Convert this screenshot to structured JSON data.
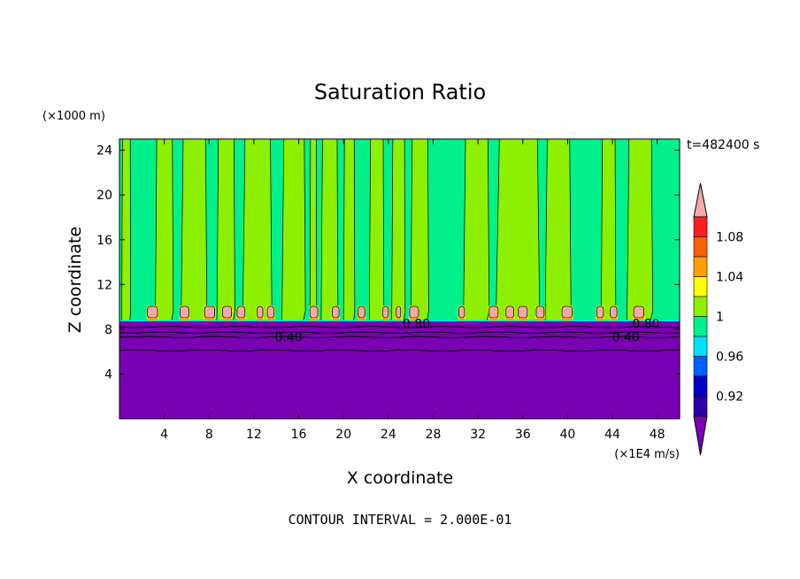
{
  "chart_data": {
    "type": "heatmap",
    "title": "Saturation Ratio",
    "xlabel": "X coordinate",
    "ylabel": "Z coordinate",
    "x_unit": "(×1E4 m/s)",
    "y_unit": "(×1000 m)",
    "time_label": "t=482400 s",
    "footer": "CONTOUR INTERVAL = 2.000E-01",
    "xlim": [
      0,
      50
    ],
    "ylim": [
      0,
      25
    ],
    "x_ticks": [
      4,
      8,
      12,
      16,
      20,
      24,
      28,
      32,
      36,
      40,
      44,
      48
    ],
    "y_ticks": [
      4,
      8,
      12,
      16,
      20,
      24
    ],
    "colorbar": {
      "levels": [
        0.92,
        0.96,
        1,
        1.04,
        1.08
      ],
      "colors": [
        "#7a00b4",
        "#2a00a8",
        "#0000c8",
        "#0060ff",
        "#00e0ff",
        "#00f08c",
        "#8cf000",
        "#ffff00",
        "#ffa000",
        "#ff6000",
        "#ff1e1e",
        "#f5a8a8"
      ]
    },
    "contour_labels": [
      {
        "text": "0.40",
        "x": 15.1,
        "z": 7.3
      },
      {
        "text": "0.80",
        "x": 26.5,
        "z": 8.5
      },
      {
        "text": "0.80",
        "x": 47.0,
        "z": 8.5
      },
      {
        "text": "0.40",
        "x": 45.2,
        "z": 7.3
      }
    ],
    "fields": {
      "lower_layer_top_z": 8.7,
      "lower_layer_value": "< 0.92",
      "green_columns_x": [
        [
          0.2,
          1.0
        ],
        [
          3.2,
          4.8
        ],
        [
          5.5,
          7.8
        ],
        [
          8.7,
          10.3
        ],
        [
          11.0,
          13.6
        ],
        [
          14.5,
          16.6
        ],
        [
          17.0,
          17.6
        ],
        [
          18.0,
          19.5
        ],
        [
          20.0,
          21.0
        ],
        [
          22.3,
          23.6
        ],
        [
          24.3,
          25.5
        ],
        [
          26.0,
          27.6
        ],
        [
          30.7,
          33.0
        ],
        [
          33.6,
          37.5
        ],
        [
          38.0,
          40.3
        ],
        [
          43.0,
          44.3
        ],
        [
          45.3,
          47.6
        ]
      ],
      "supersaturated_cells_x": [
        [
          2.5,
          3.4
        ],
        [
          5.4,
          6.2
        ],
        [
          7.6,
          8.5
        ],
        [
          9.2,
          10.0
        ],
        [
          10.5,
          11.2
        ],
        [
          12.3,
          12.8
        ],
        [
          13.2,
          13.8
        ],
        [
          17.0,
          17.7
        ],
        [
          19.0,
          19.6
        ],
        [
          21.3,
          21.9
        ],
        [
          23.5,
          24.0
        ],
        [
          24.7,
          25.1
        ],
        [
          25.9,
          26.7
        ],
        [
          30.3,
          30.8
        ],
        [
          33.0,
          33.8
        ],
        [
          34.5,
          35.2
        ],
        [
          35.6,
          36.4
        ],
        [
          37.2,
          37.9
        ],
        [
          39.5,
          40.4
        ],
        [
          42.6,
          43.2
        ],
        [
          43.8,
          44.4
        ],
        [
          45.9,
          46.8
        ]
      ]
    }
  }
}
